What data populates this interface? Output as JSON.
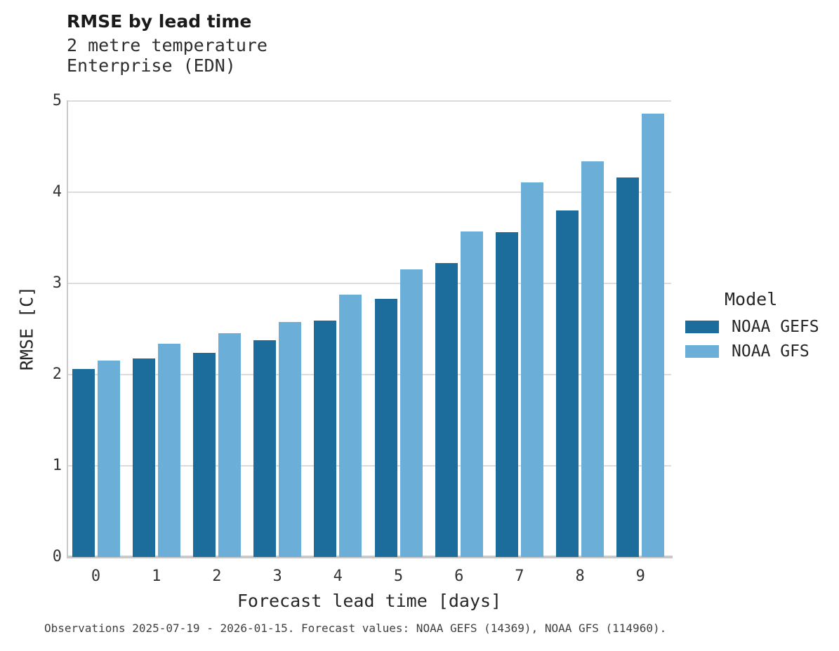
{
  "header": {
    "title": "RMSE by lead time",
    "subtitle_line1": "2 metre temperature",
    "subtitle_line2": "Enterprise (EDN)"
  },
  "chart_data": {
    "type": "bar",
    "title": "RMSE by lead time",
    "subtitle": [
      "2 metre temperature",
      "Enterprise (EDN)"
    ],
    "categories": [
      "0",
      "1",
      "2",
      "3",
      "4",
      "5",
      "6",
      "7",
      "8",
      "9"
    ],
    "series": [
      {
        "name": "NOAA GEFS",
        "color": "#1c6d9c",
        "values": [
          2.06,
          2.18,
          2.24,
          2.38,
          2.59,
          2.83,
          3.22,
          3.56,
          3.8,
          4.16
        ]
      },
      {
        "name": "NOAA GFS",
        "color": "#6bafd8",
        "values": [
          2.15,
          2.34,
          2.45,
          2.58,
          2.88,
          3.15,
          3.57,
          4.11,
          4.34,
          4.86
        ]
      }
    ],
    "xlabel": "Forecast lead time [days]",
    "ylabel": "RMSE [C]",
    "ylim": [
      0,
      5
    ],
    "yticks": [
      "0",
      "1",
      "2",
      "3",
      "4",
      "5"
    ],
    "grid": true,
    "legend_title": "Model",
    "legend_position": "right"
  },
  "legend": {
    "title": "Model",
    "entries": [
      {
        "label": "NOAA GEFS",
        "color": "#1c6d9c"
      },
      {
        "label": "NOAA GFS",
        "color": "#6bafd8"
      }
    ]
  },
  "footer": {
    "caption": "Observations 2025-07-19 - 2026-01-15. Forecast values: NOAA GEFS (14369), NOAA GFS (114960)."
  }
}
